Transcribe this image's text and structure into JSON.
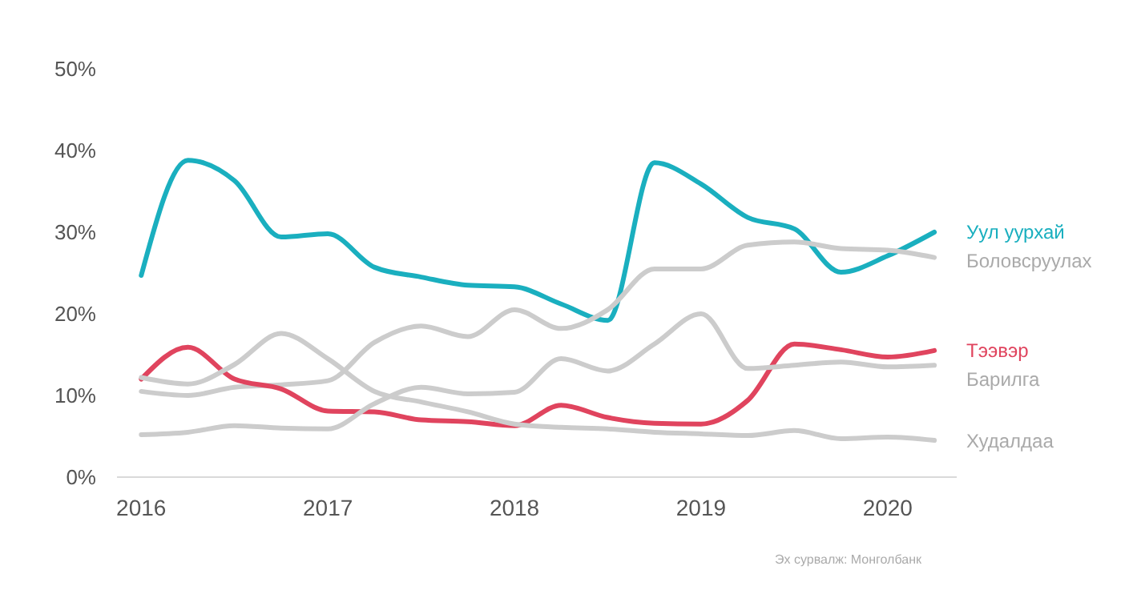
{
  "chart_data": {
    "type": "line",
    "x": [
      2016,
      2016.25,
      2016.5,
      2016.75,
      2017,
      2017.25,
      2017.5,
      2017.75,
      2018,
      2018.25,
      2018.5,
      2018.75,
      2019,
      2019.25,
      2019.5,
      2019.75,
      2020,
      2020.25
    ],
    "series": [
      {
        "name": "Уул уурхай",
        "color": "#1aafbf",
        "values": [
          24.7,
          38.8,
          36.3,
          29.4,
          29.8,
          25.7,
          24.5,
          23.5,
          23.3,
          21.2,
          19.2,
          38.5,
          35.9,
          31.8,
          30.4,
          25.1,
          27.1,
          30.0
        ]
      },
      {
        "name": "Боловсруулах",
        "color": "#cccccc",
        "values": [
          10.5,
          10.0,
          11.0,
          11.3,
          11.8,
          16.5,
          18.5,
          17.2,
          20.5,
          18.2,
          20.5,
          25.5,
          25.5,
          28.4,
          28.8,
          28.0,
          27.8,
          26.9
        ]
      },
      {
        "name": "Тээвэр",
        "color": "#e0445e",
        "values": [
          12.0,
          15.9,
          12.0,
          10.8,
          8.1,
          8.0,
          7.0,
          6.8,
          6.3,
          8.8,
          7.3,
          6.6,
          6.5,
          9.4,
          16.3,
          15.6,
          14.7,
          15.5
        ]
      },
      {
        "name": "Барилга",
        "color": "#cccccc",
        "values": [
          5.2,
          5.5,
          6.3,
          6.0,
          5.9,
          9.0,
          11.0,
          10.2,
          10.4,
          14.5,
          13.0,
          16.3,
          20.0,
          13.3,
          13.7,
          14.1,
          13.5,
          13.7
        ]
      },
      {
        "name": "Худалдаа",
        "color": "#cccccc",
        "values": [
          12.2,
          11.4,
          13.8,
          17.6,
          14.5,
          10.5,
          9.2,
          8.0,
          6.5,
          6.1,
          5.9,
          5.5,
          5.3,
          5.1,
          5.7,
          4.7,
          4.9,
          4.5
        ]
      }
    ],
    "xlim": [
      2015.87,
      2020.37
    ],
    "xticks": [
      2016,
      2017,
      2018,
      2019,
      2020
    ],
    "ylim": [
      0,
      50
    ],
    "yticks": [
      {
        "value": 0,
        "label": "0%"
      },
      {
        "value": 10,
        "label": "10%"
      },
      {
        "value": 20,
        "label": "20%"
      },
      {
        "value": 30,
        "label": "30%"
      },
      {
        "value": 40,
        "label": "40%"
      },
      {
        "value": 50,
        "label": "50%"
      }
    ],
    "grid": false,
    "line_style": "solid",
    "marker": "none",
    "annotations": [
      "Эх сурвалж: Монголбанк"
    ]
  }
}
